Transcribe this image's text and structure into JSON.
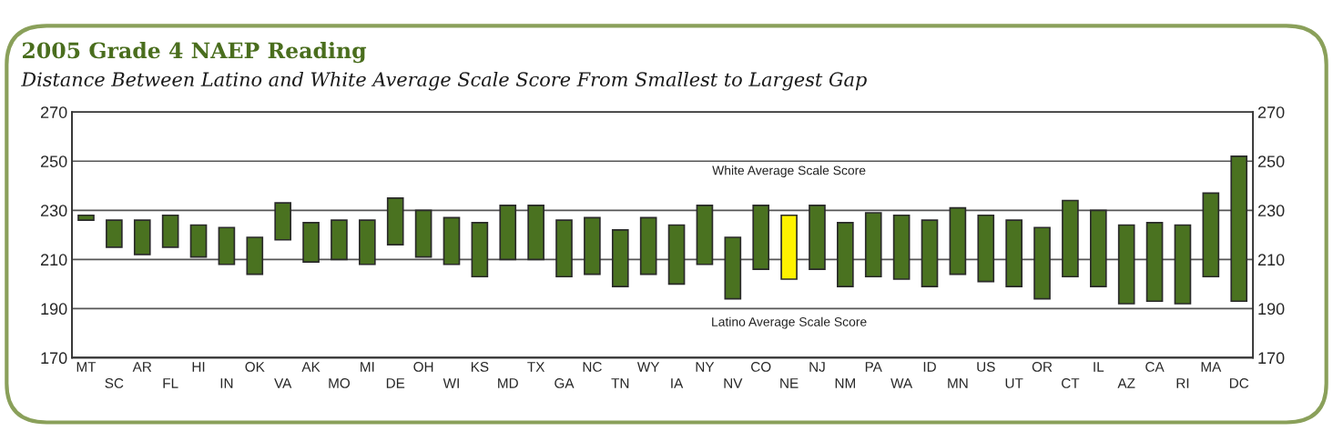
{
  "chart_data": {
    "type": "bar",
    "title": "2005 Grade 4 NAEP Reading",
    "subtitle": "Distance Between Latino and White Average Scale Score From Smallest to Largest Gap",
    "categories": [
      "MT",
      "SC",
      "AR",
      "FL",
      "HI",
      "IN",
      "OK",
      "VA",
      "AK",
      "MO",
      "MI",
      "DE",
      "OH",
      "WI",
      "KS",
      "MD",
      "TX",
      "GA",
      "NC",
      "TN",
      "WY",
      "IA",
      "NY",
      "NV",
      "CO",
      "NE",
      "NJ",
      "NM",
      "PA",
      "WA",
      "ID",
      "MN",
      "US",
      "UT",
      "OR",
      "CT",
      "IL",
      "AZ",
      "CA",
      "RI",
      "MA",
      "DC"
    ],
    "base": [
      226,
      215,
      212,
      215,
      211,
      208,
      204,
      218,
      209,
      210,
      208,
      216,
      211,
      208,
      203,
      210,
      210,
      203,
      204,
      199,
      204,
      200,
      208,
      194,
      206,
      202,
      206,
      199,
      203,
      202,
      199,
      204,
      201,
      199,
      194,
      203,
      199,
      192,
      193,
      192,
      203,
      193
    ],
    "values": [
      2,
      11,
      14,
      13,
      13,
      15,
      15,
      15,
      16,
      16,
      18,
      19,
      19,
      19,
      22,
      22,
      22,
      23,
      23,
      23,
      23,
      24,
      24,
      25,
      26,
      26,
      26,
      26,
      26,
      26,
      27,
      27,
      27,
      27,
      29,
      31,
      31,
      32,
      32,
      32,
      34,
      59
    ],
    "colors": [
      "#4a7220",
      "#4a7220",
      "#4a7220",
      "#4a7220",
      "#4a7220",
      "#4a7220",
      "#4a7220",
      "#4a7220",
      "#4a7220",
      "#4a7220",
      "#4a7220",
      "#4a7220",
      "#4a7220",
      "#4a7220",
      "#4a7220",
      "#4a7220",
      "#4a7220",
      "#4a7220",
      "#4a7220",
      "#4a7220",
      "#4a7220",
      "#4a7220",
      "#4a7220",
      "#4a7220",
      "#4a7220",
      "#fff200",
      "#4a7220",
      "#4a7220",
      "#4a7220",
      "#4a7220",
      "#4a7220",
      "#4a7220",
      "#4a7220",
      "#4a7220",
      "#4a7220",
      "#4a7220",
      "#4a7220",
      "#4a7220",
      "#4a7220",
      "#4a7220",
      "#4a7220",
      "#4a7220"
    ],
    "ylim": [
      170,
      270
    ],
    "yticks": [
      170,
      190,
      210,
      230,
      250,
      270
    ],
    "y2lim": [
      170,
      270
    ],
    "y2ticks": [
      170,
      190,
      210,
      230,
      250,
      270
    ],
    "grid": "y",
    "annotations": [
      {
        "text": "White Average Scale Score",
        "x": "NE",
        "y": 228
      },
      {
        "text": "Latino Average Scale Score",
        "x": "NE",
        "y": 202
      }
    ]
  }
}
